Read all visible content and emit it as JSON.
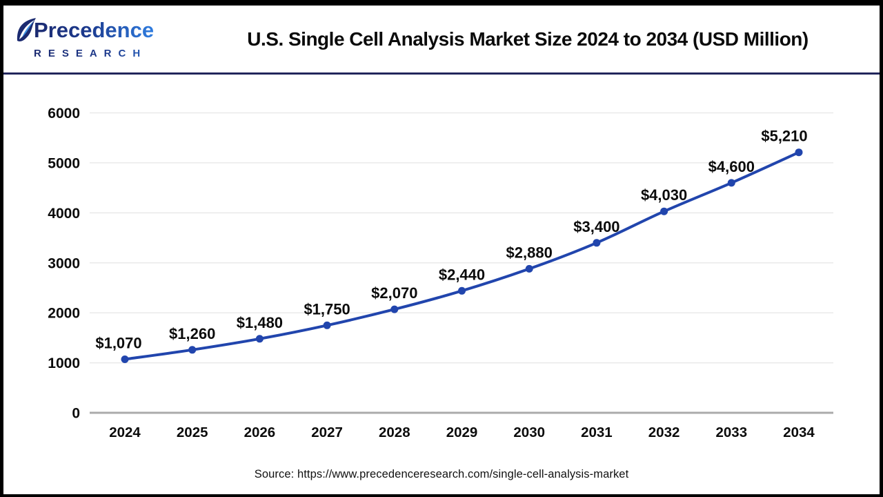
{
  "header": {
    "logo": {
      "line1": "Precedence",
      "line2": "RESEARCH"
    },
    "title": "U.S. Single Cell Analysis Market Size 2024 to 2034 (USD Million)"
  },
  "chart_data": {
    "type": "line",
    "title": "U.S. Single Cell Analysis Market Size 2024 to 2034 (USD Million)",
    "categories": [
      "2024",
      "2025",
      "2026",
      "2027",
      "2028",
      "2029",
      "2030",
      "2031",
      "2032",
      "2033",
      "2034"
    ],
    "values": [
      1070,
      1260,
      1480,
      1750,
      2070,
      2440,
      2880,
      3400,
      4030,
      4600,
      5210
    ],
    "data_labels": [
      "$1,070",
      "$1,260",
      "$1,480",
      "$1,750",
      "$2,070",
      "$2,440",
      "$2,880",
      "$3,400",
      "$4,030",
      "$4,600",
      "$5,210"
    ],
    "y_ticks": [
      0,
      1000,
      2000,
      3000,
      4000,
      5000,
      6000
    ],
    "ylim": [
      0,
      6000
    ],
    "xlabel": "",
    "ylabel": "",
    "grid": true,
    "legend": "none",
    "line_color": "#2145ad",
    "marker_color": "#2145ad",
    "gridline_color": "#e9e9e9",
    "zero_axis_color": "#ababab",
    "label_color": "#0b0b0b"
  },
  "footer": {
    "source": "Source: https://www.precedenceresearch.com/single-cell-analysis-market"
  }
}
